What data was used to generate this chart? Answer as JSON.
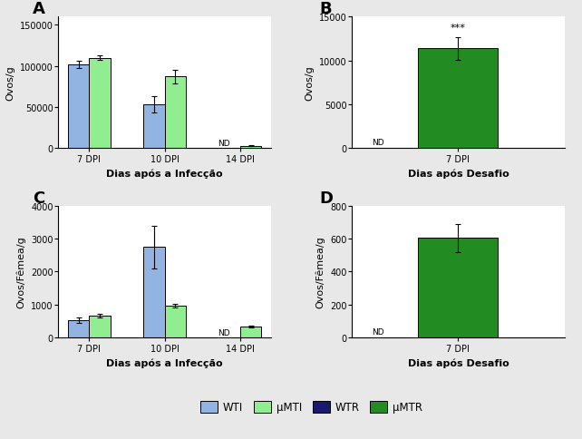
{
  "panel_A": {
    "title": "A",
    "groups": [
      "7 DPI",
      "10 DPI",
      "14 DPI"
    ],
    "WTI_values": [
      102000,
      53000,
      0
    ],
    "WTI_errors": [
      4000,
      10000,
      0
    ],
    "uMTI_values": [
      110000,
      87000,
      3000
    ],
    "uMTI_errors": [
      3000,
      8000,
      500
    ],
    "ylabel": "Ovos/g",
    "xlabel": "Dias após a Infecção",
    "ylim": [
      0,
      160000
    ],
    "yticks": [
      0,
      50000,
      100000,
      150000
    ],
    "nd_group": 2
  },
  "panel_B": {
    "title": "B",
    "groups": [
      "7 DPI"
    ],
    "uMTR_values": [
      11400
    ],
    "uMTR_errors": [
      1300
    ],
    "ylabel": "Ovos/g",
    "xlabel": "Dias após Desafio",
    "ylim": [
      0,
      15000
    ],
    "yticks": [
      0,
      5000,
      10000,
      15000
    ],
    "significance": "***"
  },
  "panel_C": {
    "title": "C",
    "groups": [
      "7 DPI",
      "10 DPI",
      "14 DPI"
    ],
    "WTI_values": [
      530,
      2750,
      0
    ],
    "WTI_errors": [
      80,
      650,
      0
    ],
    "uMTI_values": [
      650,
      960,
      330
    ],
    "uMTI_errors": [
      55,
      55,
      35
    ],
    "ylabel": "Ovos/Fêmea/g",
    "xlabel": "Dias após a Infecção",
    "ylim": [
      0,
      4000
    ],
    "yticks": [
      0,
      1000,
      2000,
      3000,
      4000
    ],
    "nd_group": 2
  },
  "panel_D": {
    "title": "D",
    "groups": [
      "7 DPI"
    ],
    "uMTR_values": [
      605
    ],
    "uMTR_errors": [
      85
    ],
    "ylabel": "Ovos/Fêmea/g",
    "xlabel": "Dias após Desafio",
    "ylim": [
      0,
      800
    ],
    "yticks": [
      0,
      200,
      400,
      600,
      800
    ]
  },
  "colors": {
    "WTI": "#92B4E3",
    "uMTI": "#90EE90",
    "WTR": "#191970",
    "uMTR": "#228B22"
  },
  "fig_bg": "#E8E8E8",
  "panel_bg": "#FFFFFF",
  "legend": {
    "labels": [
      "WTI",
      "μMTI",
      "WTR",
      "μMTR"
    ],
    "colors": [
      "#92B4E3",
      "#90EE90",
      "#191970",
      "#228B22"
    ]
  }
}
